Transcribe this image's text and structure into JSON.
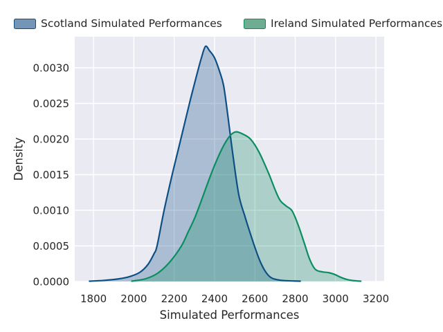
{
  "figure": {
    "bg": "#ffffff",
    "plot_bg": "#eaeaf2",
    "grid_color": "#ffffff",
    "text_color": "#262626"
  },
  "legend": {
    "items": [
      {
        "label": "Scotland Simulated Performances",
        "fill": "#7395b6",
        "border": "#0d4f85"
      },
      {
        "label": "Ireland Simulated Performances",
        "fill": "#6fad92",
        "border": "#0b8d60"
      }
    ]
  },
  "chart_data": {
    "type": "area",
    "subtype": "kde-density",
    "title": "",
    "xlabel": "Simulated Performances",
    "ylabel": "Density",
    "xlim": [
      1707,
      3241
    ],
    "ylim": [
      0,
      0.003437
    ],
    "grid": true,
    "legend_position": "top",
    "x_ticks": [
      1800,
      2000,
      2200,
      2400,
      2600,
      2800,
      3000,
      3200
    ],
    "x_tick_labels": [
      "1800",
      "2000",
      "2200",
      "2400",
      "2600",
      "2800",
      "3000",
      "3200"
    ],
    "y_ticks": [
      0,
      0.0005,
      0.001,
      0.0015,
      0.002,
      0.0025,
      0.003
    ],
    "y_tick_labels": [
      "0.0000",
      "0.0005",
      "0.0010",
      "0.0015",
      "0.0020",
      "0.0025",
      "0.0030"
    ],
    "series": [
      {
        "id": "scotland",
        "name": "Scotland Simulated Performances",
        "line_color": "#0d4f85",
        "fill_alpha": 0.29,
        "peak": {
          "x": 2355,
          "density": 0.0033
        },
        "points": [
          [
            1780,
            5e-06
          ],
          [
            1850,
            1.5e-05
          ],
          [
            1920,
            3.5e-05
          ],
          [
            1980,
            7e-05
          ],
          [
            2030,
            0.00013
          ],
          [
            2070,
            0.00024
          ],
          [
            2100,
            0.00039
          ],
          [
            2115,
            0.0005
          ],
          [
            2150,
            0.001
          ],
          [
            2190,
            0.0015
          ],
          [
            2220,
            0.00185
          ],
          [
            2250,
            0.0022
          ],
          [
            2280,
            0.00255
          ],
          [
            2310,
            0.00288
          ],
          [
            2335,
            0.00314
          ],
          [
            2355,
            0.0033
          ],
          [
            2375,
            0.00324
          ],
          [
            2400,
            0.00314
          ],
          [
            2425,
            0.00295
          ],
          [
            2445,
            0.00275
          ],
          [
            2465,
            0.00235
          ],
          [
            2490,
            0.0018
          ],
          [
            2520,
            0.00122
          ],
          [
            2550,
            0.00092
          ],
          [
            2572,
            0.00072
          ],
          [
            2600,
            0.00048
          ],
          [
            2625,
            0.00029
          ],
          [
            2650,
            0.00015
          ],
          [
            2675,
            6.5e-05
          ],
          [
            2700,
            3.2e-05
          ],
          [
            2740,
            1.4e-05
          ],
          [
            2790,
            8e-06
          ],
          [
            2825,
            5e-06
          ]
        ]
      },
      {
        "id": "ireland",
        "name": "Ireland Simulated Performances",
        "line_color": "#0b8d60",
        "fill_alpha": 0.28,
        "peak": {
          "x": 2505,
          "density": 0.0021
        },
        "points": [
          [
            1990,
            5e-06
          ],
          [
            2060,
            4e-05
          ],
          [
            2120,
            0.00012
          ],
          [
            2180,
            0.00028
          ],
          [
            2236,
            0.0005
          ],
          [
            2270,
            0.0007
          ],
          [
            2300,
            0.00088
          ],
          [
            2330,
            0.0011
          ],
          [
            2366,
            0.00138
          ],
          [
            2400,
            0.00163
          ],
          [
            2440,
            0.00188
          ],
          [
            2475,
            0.00204
          ],
          [
            2505,
            0.0021
          ],
          [
            2540,
            0.00207
          ],
          [
            2578,
            0.002
          ],
          [
            2620,
            0.00182
          ],
          [
            2668,
            0.00152
          ],
          [
            2700,
            0.00129
          ],
          [
            2725,
            0.00114
          ],
          [
            2755,
            0.00106
          ],
          [
            2785,
            0.00099
          ],
          [
            2815,
            0.00079
          ],
          [
            2846,
            0.00053
          ],
          [
            2872,
            0.00031
          ],
          [
            2900,
            0.00017
          ],
          [
            2935,
            0.000135
          ],
          [
            2965,
            0.000125
          ],
          [
            2995,
            0.0001
          ],
          [
            3025,
            6e-05
          ],
          [
            3055,
            3e-05
          ],
          [
            3090,
            1.2e-05
          ],
          [
            3125,
            5e-06
          ]
        ]
      }
    ]
  }
}
